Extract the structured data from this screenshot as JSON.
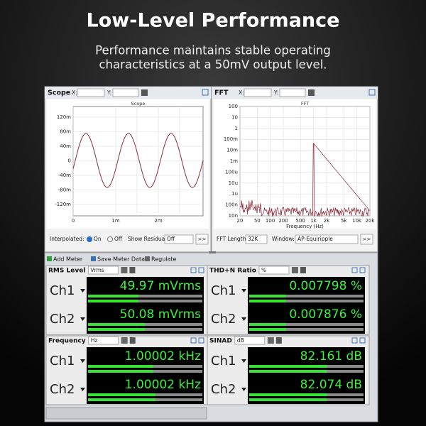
{
  "header": {
    "title": "Low-Level Performance",
    "subtitle": [
      "Performance maintains stable operating",
      "characteristics at a 50mV output level."
    ]
  },
  "panels": [
    {
      "title": "Scope",
      "x_label": "X:",
      "y_label": "Y:",
      "plot_title": "Scope",
      "yticks": [
        "120m",
        "80m",
        "40m",
        "0",
        "-40m",
        "-80m",
        "-120m"
      ],
      "xticks": [
        "0",
        "1m",
        "2m"
      ],
      "footer": [
        "Interpolated:",
        "On",
        "Off",
        "Show Residual:",
        "Off",
        ">>"
      ]
    },
    {
      "title": "FFT",
      "x_label": "X:",
      "y_label": "Y:",
      "plot_title": "FFT",
      "yticks": [
        "100",
        "10",
        "1",
        "100m",
        "10m",
        "1m",
        "100u",
        "10u",
        "1u",
        "100n",
        "10n"
      ],
      "xticks": [
        "20",
        "50",
        "100",
        "200",
        "500",
        "1k",
        "2k",
        "5k",
        "10k",
        "20k"
      ],
      "x_axis_label": "Frequency (Hz)",
      "footer": [
        "FFT Length:",
        "32K",
        "Window:",
        "AP-Equiripple",
        ">>"
      ]
    }
  ],
  "toolbar": [
    "Add Meter",
    "Save Meter Data",
    "Regulate"
  ],
  "meters": [
    {
      "title": "RMS Level",
      "unit": "Vrms",
      "rows": [
        {
          "channel": "Ch1",
          "reading": "49.97  mVrms"
        },
        {
          "channel": "Ch2",
          "reading": "50.08  mVrms"
        }
      ]
    },
    {
      "title": "THD+N Ratio",
      "unit": "%",
      "rows": [
        {
          "channel": "Ch1",
          "reading": "0.007798  %"
        },
        {
          "channel": "Ch2",
          "reading": "0.007876  %"
        }
      ]
    },
    {
      "title": "Frequency",
      "unit": "Hz",
      "rows": [
        {
          "channel": "Ch1",
          "reading": "1.00002  kHz"
        },
        {
          "channel": "Ch2",
          "reading": "1.00002  kHz"
        }
      ]
    },
    {
      "title": "SINAD",
      "unit": "dB",
      "rows": [
        {
          "channel": "Ch1",
          "reading": "82.161  dB"
        },
        {
          "channel": "Ch2",
          "reading": "82.074  dB"
        }
      ]
    }
  ]
}
